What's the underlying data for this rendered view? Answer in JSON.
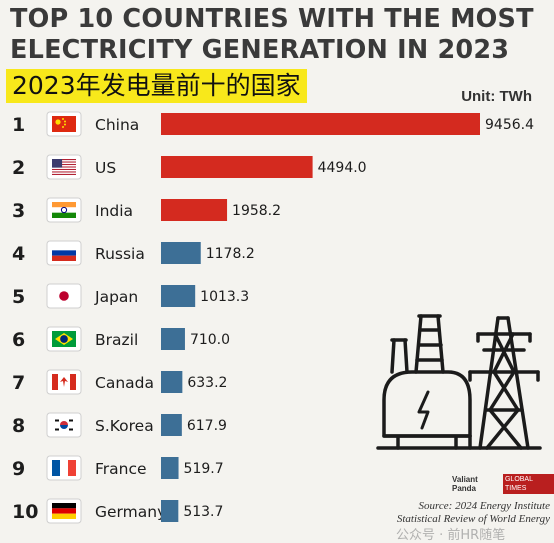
{
  "header": {
    "title_line1": "TOP 10 COUNTRIES WITH THE MOST",
    "title_line2": "ELECTRICITY GENERATION IN 2023",
    "subtitle": "2023年发电量前十的国家",
    "unit": "Unit: TWh"
  },
  "chart_data": {
    "type": "bar",
    "orientation": "horizontal",
    "title": "TOP 10 COUNTRIES WITH THE MOST ELECTRICITY GENERATION IN 2023",
    "subtitle": "2023年发电量前十的国家",
    "unit": "TWh",
    "categories": [
      "China",
      "US",
      "India",
      "Russia",
      "Japan",
      "Brazil",
      "Canada",
      "S.Korea",
      "France",
      "Germany"
    ],
    "ranks": [
      "1",
      "2",
      "3",
      "4",
      "5",
      "6",
      "7",
      "8",
      "9",
      "10"
    ],
    "values": [
      9456.4,
      4494.0,
      1958.2,
      1178.2,
      1013.3,
      710.0,
      633.2,
      617.9,
      519.7,
      513.7
    ],
    "value_labels": [
      "9456.4",
      "4494.0",
      "1958.2",
      "1178.2",
      "1013.3",
      "710.0",
      "633.2",
      "617.9",
      "519.7",
      "513.7"
    ],
    "flags": [
      "flag-china",
      "flag-us",
      "flag-india",
      "flag-russia",
      "flag-japan",
      "flag-brazil",
      "flag-canada",
      "flag-south-korea",
      "flag-france",
      "flag-germany"
    ],
    "colors": {
      "top3": "#d42a1f",
      "rest": "#3d6f96"
    },
    "xlim": [
      0,
      9456.4
    ],
    "grid": false,
    "legend": "none"
  },
  "footer": {
    "badge_left": "Valiant Panda",
    "badge_right": "GLOBAL TIMES",
    "source_line1": "Source: 2024 Energy Institute",
    "source_line2": "Statistical Review of World Energy",
    "watermark": "公众号 · 前HR随笔"
  },
  "icons": {
    "illustration": "power-plant-and-pylon-icon"
  }
}
